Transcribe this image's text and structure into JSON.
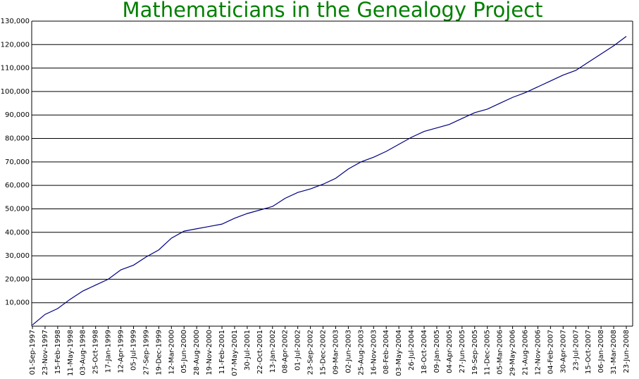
{
  "chart_data": {
    "type": "line",
    "title": "Mathematicians in the Genealogy Project",
    "categories": [
      "01-Sep-1997",
      "23-Nov-1997",
      "15-Feb-1998",
      "11-May-1998",
      "03-Aug-1998",
      "25-Oct-1998",
      "17-Jan-1999",
      "12-Apr-1999",
      "05-Jul-1999",
      "27-Sep-1999",
      "19-Dec-1999",
      "12-Mar-2000",
      "05-Jun-2000",
      "28-Aug-2000",
      "19-Nov-2000",
      "11-Feb-2001",
      "07-May-2001",
      "30-Jul-2001",
      "22-Oct-2001",
      "13-Jan-2002",
      "08-Apr-2002",
      "01-Jul-2002",
      "23-Sep-2002",
      "15-Dec-2002",
      "09-Mar-2003",
      "02-Jun-2003",
      "25-Aug-2003",
      "16-Nov-2003",
      "08-Feb-2004",
      "03-May-2004",
      "26-Jul-2004",
      "18-Oct-2004",
      "09-Jan-2005",
      "04-Apr-2005",
      "27-Jun-2005",
      "19-Sep-2005",
      "11-Dec-2005",
      "05-Mar-2006",
      "29-May-2006",
      "21-Aug-2006",
      "12-Nov-2006",
      "04-Feb-2007",
      "30-Apr-2007",
      "23-Jul-2007",
      "15-Oct-2007",
      "06-Jan-2008",
      "31-Mar-2008",
      "23-Jun-2008"
    ],
    "series": [
      {
        "color": "#000080",
        "values": [
          500,
          5000,
          7500,
          11500,
          15000,
          17500,
          20000,
          24000,
          26000,
          29500,
          32500,
          37500,
          40500,
          41500,
          42500,
          43500,
          46000,
          48000,
          49500,
          51000,
          54500,
          57000,
          58500,
          60500,
          63000,
          67000,
          70000,
          72000,
          74500,
          77500,
          80500,
          83000,
          84500,
          86000,
          88500,
          91000,
          92500,
          95000,
          97500,
          99500,
          102000,
          104500,
          107000,
          109000,
          112500,
          116000,
          119500,
          123500
        ]
      }
    ],
    "ylim": [
      0,
      130000
    ],
    "yticks": [
      {
        "value": 10000,
        "label": "10,000"
      },
      {
        "value": 20000,
        "label": "20,000"
      },
      {
        "value": 30000,
        "label": "30,000"
      },
      {
        "value": 40000,
        "label": "40,000"
      },
      {
        "value": 50000,
        "label": "50,000"
      },
      {
        "value": 60000,
        "label": "60,000"
      },
      {
        "value": 70000,
        "label": "70,000"
      },
      {
        "value": 80000,
        "label": "80,000"
      },
      {
        "value": 90000,
        "label": "90,000"
      },
      {
        "value": 100000,
        "label": "100,000"
      },
      {
        "value": 110000,
        "label": "110,000"
      },
      {
        "value": 120000,
        "label": "120,000"
      },
      {
        "value": 130000,
        "label": "130,000"
      }
    ],
    "grid": true
  }
}
